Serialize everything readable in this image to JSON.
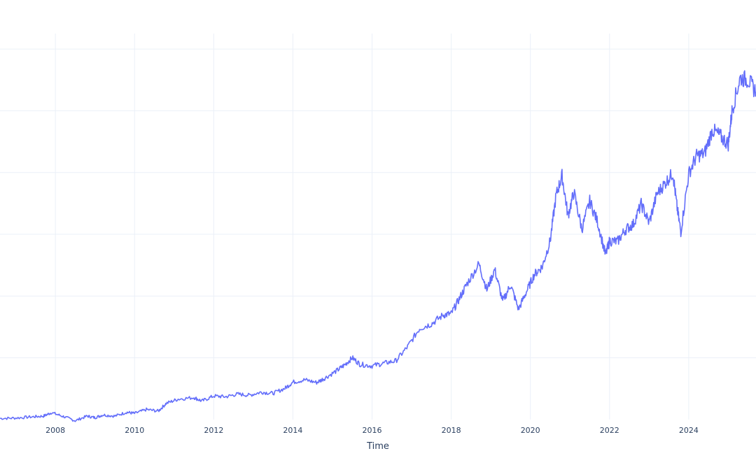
{
  "chart_data": {
    "type": "line",
    "title": "",
    "xlabel": "Time",
    "ylabel": "",
    "grid": true,
    "x_tick_labels": [
      "2008",
      "2010",
      "2012",
      "2014",
      "2016",
      "2018",
      "2020",
      "2022",
      "2024"
    ],
    "x_ticks": [
      2008,
      2010,
      2012,
      2014,
      2016,
      2018,
      2020,
      2022,
      2024
    ],
    "xlim": [
      2006.6,
      2025.7
    ],
    "ylim": [
      0,
      100
    ],
    "y_gridlines": [
      16,
      32,
      48,
      64,
      80,
      96
    ],
    "series": [
      {
        "color": "#636efa",
        "x": [
          2006.6,
          2007.0,
          2007.4,
          2007.7,
          2007.9,
          2008.2,
          2008.5,
          2008.8,
          2009.0,
          2009.2,
          2009.5,
          2009.8,
          2010.0,
          2010.3,
          2010.6,
          2010.8,
          2011.1,
          2011.5,
          2011.7,
          2012.0,
          2012.3,
          2012.6,
          2012.9,
          2013.2,
          2013.5,
          2013.8,
          2014.0,
          2014.3,
          2014.6,
          2014.8,
          2015.1,
          2015.3,
          2015.5,
          2015.7,
          2016.0,
          2016.3,
          2016.6,
          2016.9,
          2017.2,
          2017.5,
          2017.8,
          2018.0,
          2018.2,
          2018.4,
          2018.7,
          2018.9,
          2019.1,
          2019.3,
          2019.5,
          2019.7,
          2019.9,
          2020.1,
          2020.3,
          2020.5,
          2020.65,
          2020.8,
          2020.95,
          2021.1,
          2021.3,
          2021.5,
          2021.7,
          2021.9,
          2022.0,
          2022.2,
          2022.4,
          2022.6,
          2022.8,
          2023.0,
          2023.2,
          2023.4,
          2023.6,
          2023.7,
          2023.8,
          2024.0,
          2024.2,
          2024.4,
          2024.6,
          2024.8,
          2025.0,
          2025.1,
          2025.3,
          2025.5,
          2025.7
        ],
        "y": [
          0.3,
          0.4,
          0.7,
          0.9,
          1.8,
          0.8,
          -0.3,
          0.9,
          0.5,
          1.2,
          0.9,
          1.9,
          1.6,
          2.6,
          2.2,
          4.2,
          5.3,
          5.7,
          4.8,
          6.1,
          5.9,
          6.6,
          6.3,
          7.1,
          6.8,
          8.1,
          9.7,
          10.3,
          9.6,
          10.7,
          12.6,
          14.1,
          16.0,
          14.3,
          13.9,
          14.6,
          15.2,
          18.9,
          23.6,
          24.8,
          27.1,
          27.4,
          31.2,
          35.2,
          40.3,
          33.6,
          38.9,
          30.6,
          34.9,
          28.6,
          33.1,
          37.6,
          39.6,
          46.3,
          58.1,
          63.2,
          52.8,
          58.9,
          49.3,
          56.6,
          51.1,
          42.6,
          46.3,
          46.1,
          49.2,
          50.6,
          55.8,
          51.0,
          58.5,
          61.2,
          63.9,
          55.4,
          48.6,
          63.7,
          68.3,
          68.9,
          75.1,
          73.4,
          71.4,
          80.4,
          88.5,
          88.0,
          84.9
        ]
      }
    ]
  }
}
